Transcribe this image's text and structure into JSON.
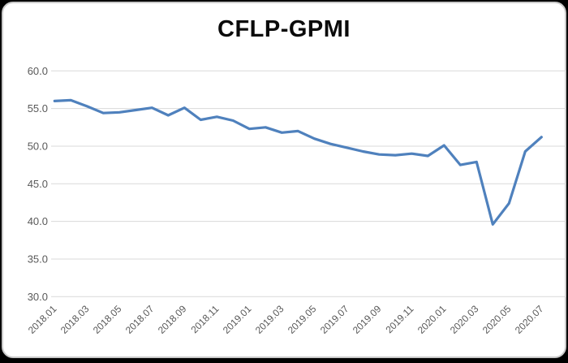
{
  "window": {
    "background_color": "#000000",
    "card_background": "#ffffff",
    "card_border_color": "#c9c9c9"
  },
  "chart_data": {
    "type": "line",
    "title": "CFLP-GPMI",
    "xlabel": "",
    "ylabel": "",
    "ylim": [
      30,
      60
    ],
    "grid": true,
    "legend_position": "none",
    "line_color": "#4F81BD",
    "gridline_color": "#D9D9D9",
    "axis_border_color": "#D9D9D9",
    "tick_label_color": "#595959",
    "y_tick_values": [
      60,
      55,
      50,
      45,
      40,
      35,
      30
    ],
    "y_tick_labels": [
      "60.0",
      "55.0",
      "50.0",
      "45.0",
      "40.0",
      "35.0",
      "30.0"
    ],
    "x_tick_labels": [
      "2018.01",
      "2018.03",
      "2018.05",
      "2018.07",
      "2018.09",
      "2018.11",
      "2019.01",
      "2019.03",
      "2019.05",
      "2019.07",
      "2019.09",
      "2019.11",
      "2020.01",
      "2020.03",
      "2020.05",
      "2020.07"
    ],
    "categories": [
      "2018.01",
      "2018.02",
      "2018.03",
      "2018.04",
      "2018.05",
      "2018.06",
      "2018.07",
      "2018.08",
      "2018.09",
      "2018.10",
      "2018.11",
      "2018.12",
      "2019.01",
      "2019.02",
      "2019.03",
      "2019.04",
      "2019.05",
      "2019.06",
      "2019.07",
      "2019.08",
      "2019.09",
      "2019.10",
      "2019.11",
      "2019.12",
      "2020.01",
      "2020.02",
      "2020.03",
      "2020.04",
      "2020.05",
      "2020.06",
      "2020.07"
    ],
    "series": [
      {
        "name": "CFLP-GPMI",
        "values": [
          56.0,
          56.1,
          55.3,
          54.4,
          54.5,
          54.8,
          55.1,
          54.1,
          55.1,
          53.5,
          53.9,
          53.4,
          52.3,
          52.5,
          51.8,
          52.0,
          51.0,
          50.3,
          49.8,
          49.3,
          48.9,
          48.8,
          49.0,
          48.7,
          50.1,
          47.5,
          47.9,
          39.6,
          42.4,
          49.3,
          51.2
        ]
      }
    ]
  }
}
